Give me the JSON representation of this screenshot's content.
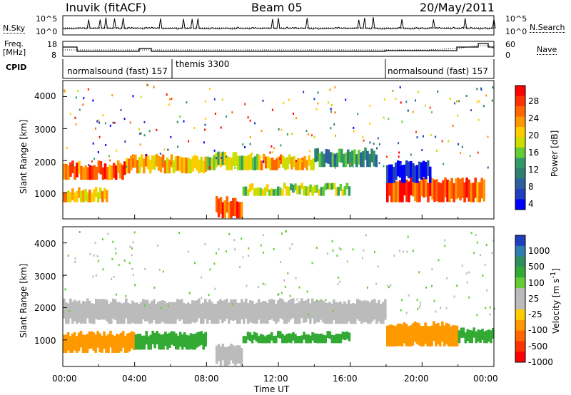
{
  "header": {
    "station": "Inuvik (fitACF)",
    "beam": "Beam 05",
    "date": "20/May/2011"
  },
  "panels": {
    "nsky_label": "N.Sky",
    "nsearch_label": "N.Search",
    "noise_ticks_left": [
      "10^5",
      "10^0"
    ],
    "noise_ticks_right": [
      "10^5",
      "10^0"
    ],
    "freq_label_1": "Freq.",
    "freq_label_2": "[MHz]",
    "freq_ticks": [
      "18",
      "8"
    ],
    "nave_label": "Nave",
    "nave_ticks": [
      "60",
      "0"
    ],
    "cpid_label": "CPID",
    "cpid_segments": [
      {
        "label": "normalsound (fast) 157",
        "start": 0,
        "end": 6
      },
      {
        "label": "themis 3300",
        "start": 6,
        "end": 18
      },
      {
        "label": "normalsound (fast) 157",
        "start": 18,
        "end": 24
      }
    ]
  },
  "axes": {
    "ylabel": "Slant Range [km]",
    "yticks": [
      "4000",
      "3000",
      "2000",
      "1000"
    ],
    "xticks": [
      "00:00",
      "04:00",
      "08:00",
      "12:00",
      "16:00",
      "20:00",
      "00:00"
    ],
    "xlabel": "Time UT"
  },
  "colorbars": {
    "power_label": "Power [dB]",
    "power_ticks": [
      "28",
      "24",
      "20",
      "16",
      "12",
      "8",
      "4"
    ],
    "power_colors": [
      "#ff0000",
      "#ff3300",
      "#ff6600",
      "#ff9900",
      "#ffcc00",
      "#ccdd00",
      "#66cc33",
      "#339966",
      "#2f7f6f",
      "#2d5fa0",
      "#1f3fbf",
      "#0000ff"
    ],
    "velocity_label": "Velocity [m s",
    "velocity_label_sup": "-1",
    "velocity_label_end": "]",
    "velocity_ticks": [
      "1000",
      "500",
      "100",
      "25",
      "-25",
      "-100",
      "-500",
      "-1000"
    ],
    "velocity_colors": [
      "#1f3fbf",
      "#2d7fb0",
      "#2f8f5f",
      "#33aa33",
      "#66cc33",
      "#bbbbbb",
      "#bbbbbb",
      "#ffcc00",
      "#ff9900",
      "#ff6600",
      "#ff3300",
      "#ff0000"
    ]
  },
  "chart_data": [
    {
      "type": "heatmap",
      "title": "",
      "xlabel": "Time UT",
      "ylabel": "Slant Range [km]",
      "xlim": [
        0,
        24
      ],
      "ylim": [
        180,
        4500
      ],
      "colorbar": "Power [dB]",
      "features": [
        {
          "t": [
            0,
            3.5
          ],
          "range": [
            1400,
            1900
          ],
          "value": 28
        },
        {
          "t": [
            3.5,
            8
          ],
          "range": [
            1600,
            2100
          ],
          "value": 24
        },
        {
          "t": [
            8,
            11
          ],
          "range": [
            1700,
            2200
          ],
          "value": 20
        },
        {
          "t": [
            11,
            14
          ],
          "range": [
            1700,
            2100
          ],
          "value": 24
        },
        {
          "t": [
            14,
            17.5
          ],
          "range": [
            1800,
            2300
          ],
          "value": 16
        },
        {
          "t": [
            0,
            2.5
          ],
          "range": [
            700,
            1100
          ],
          "value": 24
        },
        {
          "t": [
            8.5,
            10
          ],
          "range": [
            200,
            800
          ],
          "value": 28
        },
        {
          "t": [
            10,
            16
          ],
          "range": [
            900,
            1200
          ],
          "value": 20
        },
        {
          "t": [
            18,
            23.5
          ],
          "range": [
            700,
            1400
          ],
          "value": 28
        },
        {
          "t": [
            18,
            20.5
          ],
          "range": [
            1300,
            1900
          ],
          "value": 8
        }
      ]
    },
    {
      "type": "heatmap",
      "title": "",
      "xlabel": "Time UT",
      "ylabel": "Slant Range [km]",
      "xlim": [
        0,
        24
      ],
      "ylim": [
        180,
        4500
      ],
      "colorbar": "Velocity [m s-1]",
      "features": [
        {
          "t": [
            0,
            18
          ],
          "range": [
            1500,
            2200
          ],
          "value": 0
        },
        {
          "t": [
            0,
            4
          ],
          "range": [
            600,
            1200
          ],
          "value": -100
        },
        {
          "t": [
            4,
            8
          ],
          "range": [
            700,
            1200
          ],
          "value": 100
        },
        {
          "t": [
            8.5,
            10
          ],
          "range": [
            200,
            800
          ],
          "value": 0
        },
        {
          "t": [
            10,
            16
          ],
          "range": [
            900,
            1200
          ],
          "value": 100
        },
        {
          "t": [
            18,
            22
          ],
          "range": [
            800,
            1500
          ],
          "value": -100
        },
        {
          "t": [
            22,
            24
          ],
          "range": [
            900,
            1300
          ],
          "value": 100
        }
      ]
    }
  ]
}
